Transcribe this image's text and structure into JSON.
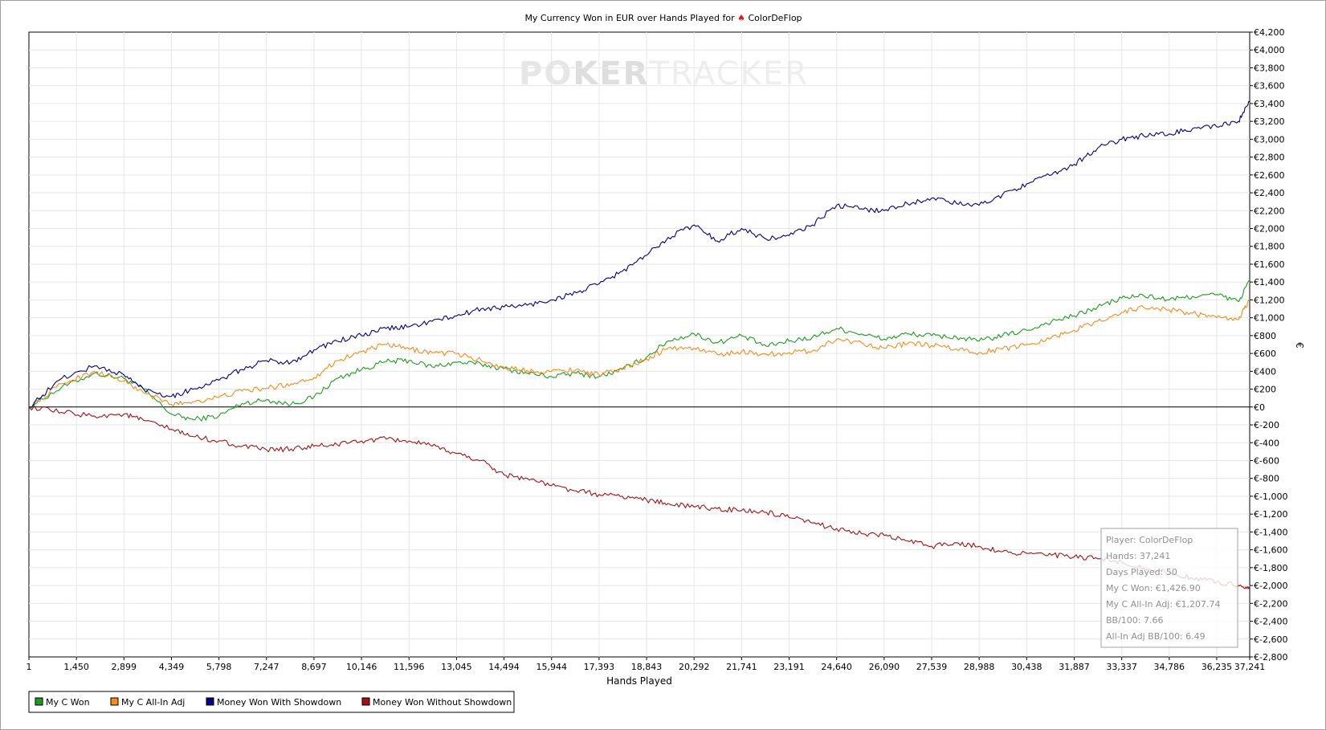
{
  "chart_data": {
    "type": "line",
    "title": "My Currency Won in EUR over Hands Played for",
    "player_name": "ColorDeFlop",
    "xlabel": "Hands Played",
    "ylabel": "€",
    "watermark": [
      "PO",
      "KER",
      "TRACKER"
    ],
    "xlim": [
      1,
      37241
    ],
    "ylim": [
      -2800,
      4200
    ],
    "x_ticks": [
      1,
      1450,
      2899,
      4349,
      5798,
      7247,
      8697,
      10146,
      11596,
      13045,
      14494,
      15944,
      17393,
      18843,
      20292,
      21741,
      23191,
      24640,
      26090,
      27539,
      28988,
      30438,
      31887,
      33337,
      34786,
      36235,
      37241
    ],
    "x_tick_labels": [
      "1",
      "1,450",
      "2,899",
      "4,349",
      "5,798",
      "7,247",
      "8,697",
      "10,146",
      "11,596",
      "13,045",
      "14,494",
      "15,944",
      "17,393",
      "18,843",
      "20,292",
      "21,741",
      "23,191",
      "24,640",
      "26,090",
      "27,539",
      "28,988",
      "30,438",
      "31,887",
      "33,337",
      "34,786",
      "36,235",
      "37,241"
    ],
    "y_ticks": [
      4200,
      4000,
      3800,
      3600,
      3400,
      3200,
      3000,
      2800,
      2600,
      2400,
      2200,
      2000,
      1800,
      1600,
      1400,
      1200,
      1000,
      800,
      600,
      400,
      200,
      0,
      -200,
      -400,
      -600,
      -800,
      -1000,
      -1200,
      -1400,
      -1600,
      -1800,
      -2000,
      -2200,
      -2400,
      -2600,
      -2800
    ],
    "y_tick_labels": [
      "€4,200",
      "€4,000",
      "€3,800",
      "€3,600",
      "€3,400",
      "€3,200",
      "€3,000",
      "€2,800",
      "€2,600",
      "€2,400",
      "€2,200",
      "€2,000",
      "€1,800",
      "€1,600",
      "€1,400",
      "€1,200",
      "€1,000",
      "€800",
      "€600",
      "€400",
      "€200",
      "€0",
      "€-200",
      "€-400",
      "€-600",
      "€-800",
      "€-1,000",
      "€-1,200",
      "€-1,400",
      "€-1,600",
      "€-1,800",
      "€-2,000",
      "€-2,200",
      "€-2,400",
      "€-2,600",
      "€-2,800"
    ],
    "grid": true,
    "zero_line": true,
    "x": [
      1,
      1000,
      2000,
      2899,
      3500,
      4349,
      5000,
      5798,
      6500,
      7247,
      8000,
      8697,
      9400,
      10146,
      10900,
      11596,
      12300,
      13045,
      13800,
      14494,
      15200,
      15944,
      16700,
      17393,
      18100,
      18843,
      19500,
      20292,
      21000,
      21741,
      22500,
      23191,
      23900,
      24640,
      25400,
      26090,
      26800,
      27539,
      28300,
      28988,
      29700,
      30438,
      31200,
      31887,
      32600,
      33337,
      34000,
      34786,
      35500,
      36235,
      36900,
      37241
    ],
    "series": [
      {
        "name": "My C Won",
        "color": "#1e9a1e",
        "values": [
          0,
          220,
          380,
          320,
          200,
          -80,
          -140,
          -100,
          40,
          80,
          30,
          110,
          320,
          420,
          510,
          520,
          450,
          500,
          480,
          430,
          380,
          340,
          380,
          340,
          420,
          560,
          740,
          820,
          720,
          800,
          680,
          740,
          780,
          880,
          820,
          760,
          820,
          800,
          780,
          740,
          800,
          860,
          960,
          1020,
          1120,
          1220,
          1250,
          1200,
          1240,
          1260,
          1180,
          1426.9
        ]
      },
      {
        "name": "My C All-In Adj",
        "color": "#f28c1e",
        "values": [
          0,
          260,
          400,
          290,
          160,
          30,
          60,
          110,
          180,
          210,
          260,
          330,
          520,
          620,
          700,
          650,
          610,
          600,
          520,
          440,
          410,
          400,
          420,
          360,
          430,
          540,
          660,
          660,
          590,
          620,
          590,
          610,
          630,
          760,
          720,
          660,
          710,
          690,
          650,
          610,
          650,
          700,
          780,
          860,
          960,
          1060,
          1120,
          1090,
          1050,
          1000,
          980,
          1207.74
        ]
      },
      {
        "name": "Money Won With Showdown",
        "color": "#000080",
        "values": [
          0,
          320,
          460,
          360,
          200,
          120,
          200,
          300,
          420,
          520,
          500,
          640,
          740,
          800,
          880,
          900,
          960,
          1020,
          1100,
          1120,
          1140,
          1200,
          1280,
          1380,
          1520,
          1700,
          1900,
          2040,
          1860,
          2000,
          1880,
          1920,
          2040,
          2260,
          2220,
          2200,
          2280,
          2340,
          2280,
          2260,
          2380,
          2500,
          2600,
          2720,
          2900,
          3000,
          3040,
          3060,
          3120,
          3140,
          3200,
          3420
        ]
      },
      {
        "name": "Money Won Without Showdown",
        "color": "#a01414",
        "values": [
          0,
          -60,
          -100,
          -80,
          -150,
          -250,
          -330,
          -380,
          -440,
          -480,
          -470,
          -440,
          -420,
          -380,
          -360,
          -380,
          -440,
          -520,
          -600,
          -760,
          -800,
          -880,
          -940,
          -980,
          -1000,
          -1040,
          -1080,
          -1120,
          -1140,
          -1160,
          -1180,
          -1240,
          -1300,
          -1360,
          -1420,
          -1440,
          -1500,
          -1560,
          -1520,
          -1560,
          -1620,
          -1640,
          -1660,
          -1680,
          -1700,
          -1740,
          -1800,
          -1860,
          -1920,
          -1960,
          -2000,
          -2010
        ]
      }
    ],
    "legend_position": "bottom-left",
    "stats_box": [
      "Player: ColorDeFlop",
      "Hands: 37,241",
      "Days Played: 50",
      "My C Won: €1,426.90",
      "My C All-In Adj: €1,207.74",
      "BB/100: 7.66",
      "All-In Adj BB/100: 6.49"
    ]
  }
}
